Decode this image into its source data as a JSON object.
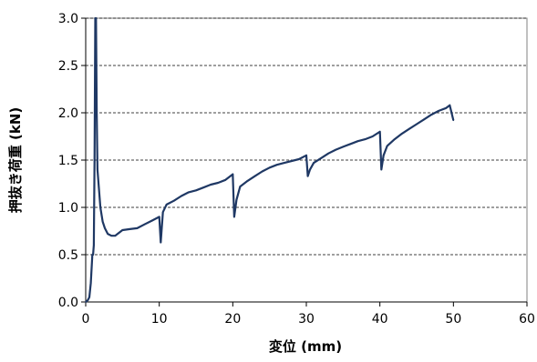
{
  "chart_data": {
    "type": "line",
    "title": "",
    "xlabel": "変位 (mm)",
    "ylabel": "押抜き荷重 (kN)",
    "xlim": [
      0,
      60
    ],
    "ylim": [
      0,
      3.0
    ],
    "x_ticks": [
      "0",
      "10",
      "20",
      "30",
      "40",
      "50",
      "60"
    ],
    "y_ticks": [
      "0.0",
      "0.5",
      "1.0",
      "1.5",
      "2.0",
      "2.5",
      "3.0"
    ],
    "grid": "horizontal dashed",
    "legend": "none",
    "series": [
      {
        "color": "#1f3864",
        "x": [
          0.0,
          0.3,
          0.5,
          0.7,
          0.9,
          1.0,
          1.1,
          1.2,
          1.3,
          1.4,
          1.5,
          1.6,
          1.8,
          2.0,
          2.3,
          2.6,
          3.0,
          3.5,
          4.0,
          4.5,
          5.0,
          6.0,
          7.0,
          8.0,
          9.0,
          10.0,
          10.2,
          10.5,
          11.0,
          12.0,
          13.0,
          14.0,
          15.0,
          16.0,
          17.0,
          18.0,
          19.0,
          20.0,
          20.2,
          20.5,
          21.0,
          22.0,
          23.0,
          24.0,
          25.0,
          26.0,
          27.0,
          28.0,
          29.0,
          30.0,
          30.2,
          30.5,
          31.0,
          32.0,
          33.0,
          34.0,
          35.0,
          36.0,
          37.0,
          38.0,
          39.0,
          40.0,
          40.2,
          40.5,
          41.0,
          42.0,
          43.0,
          44.0,
          45.0,
          46.0,
          47.0,
          48.0,
          49.0,
          49.5,
          50.0
        ],
        "y": [
          0.0,
          0.02,
          0.05,
          0.2,
          0.5,
          0.5,
          0.6,
          1.5,
          3.0,
          3.0,
          2.0,
          1.4,
          1.2,
          1.0,
          0.85,
          0.78,
          0.72,
          0.7,
          0.7,
          0.73,
          0.76,
          0.77,
          0.78,
          0.82,
          0.86,
          0.9,
          0.63,
          0.95,
          1.03,
          1.07,
          1.12,
          1.16,
          1.18,
          1.21,
          1.24,
          1.26,
          1.29,
          1.35,
          0.9,
          1.08,
          1.22,
          1.28,
          1.33,
          1.38,
          1.42,
          1.45,
          1.47,
          1.49,
          1.51,
          1.55,
          1.33,
          1.4,
          1.47,
          1.52,
          1.57,
          1.61,
          1.64,
          1.67,
          1.7,
          1.72,
          1.75,
          1.8,
          1.4,
          1.55,
          1.65,
          1.72,
          1.78,
          1.83,
          1.88,
          1.93,
          1.98,
          2.02,
          2.05,
          2.08,
          1.92
        ]
      }
    ]
  }
}
